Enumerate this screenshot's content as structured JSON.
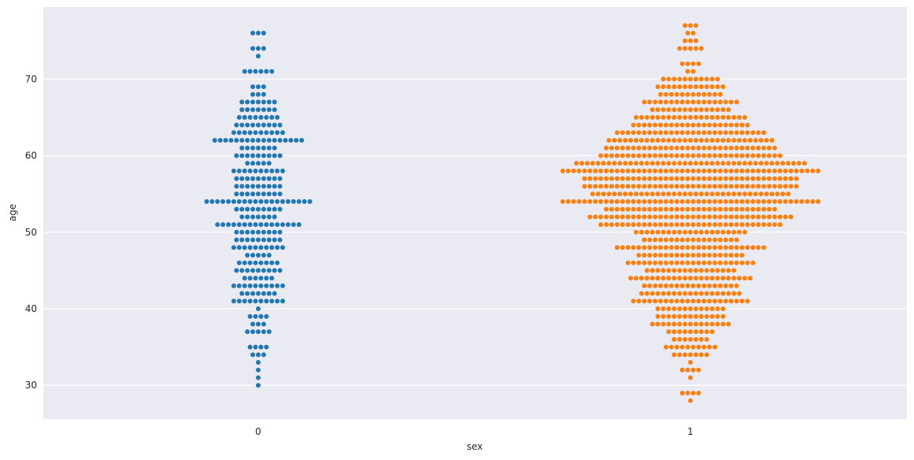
{
  "chart_data": {
    "type": "scatter",
    "subtype": "swarm",
    "title": "",
    "xlabel": "sex",
    "ylabel": "age",
    "categories": [
      "0",
      "1"
    ],
    "ylim": [
      25.6,
      79.4
    ],
    "yticks": [
      30,
      40,
      50,
      60,
      70
    ],
    "grid": true,
    "legend": "none",
    "colors": {
      "background": "#eaeaf2",
      "grid": "#ffffff",
      "series_0": "#1f77b4",
      "series_1": "#ff7f0e"
    },
    "series": [
      {
        "category": "0",
        "color": "#1f77b4",
        "age_counts": [
          [
            30,
            1
          ],
          [
            31,
            1
          ],
          [
            32,
            1
          ],
          [
            33,
            1
          ],
          [
            34,
            3
          ],
          [
            35,
            4
          ],
          [
            37,
            5
          ],
          [
            38,
            3
          ],
          [
            39,
            4
          ],
          [
            40,
            1
          ],
          [
            41,
            10
          ],
          [
            42,
            7
          ],
          [
            43,
            10
          ],
          [
            44,
            6
          ],
          [
            45,
            9
          ],
          [
            46,
            8
          ],
          [
            47,
            5
          ],
          [
            48,
            10
          ],
          [
            49,
            9
          ],
          [
            50,
            9
          ],
          [
            51,
            16
          ],
          [
            52,
            7
          ],
          [
            53,
            9
          ],
          [
            54,
            20
          ],
          [
            55,
            9
          ],
          [
            56,
            9
          ],
          [
            57,
            9
          ],
          [
            58,
            10
          ],
          [
            59,
            5
          ],
          [
            60,
            9
          ],
          [
            61,
            7
          ],
          [
            62,
            17
          ],
          [
            63,
            10
          ],
          [
            64,
            9
          ],
          [
            65,
            8
          ],
          [
            66,
            7
          ],
          [
            67,
            7
          ],
          [
            68,
            3
          ],
          [
            69,
            3
          ],
          [
            71,
            6
          ],
          [
            73,
            1
          ],
          [
            74,
            3
          ],
          [
            76,
            3
          ]
        ]
      },
      {
        "category": "1",
        "color": "#ff7f0e",
        "age_counts": [
          [
            28,
            1
          ],
          [
            29,
            4
          ],
          [
            31,
            1
          ],
          [
            32,
            4
          ],
          [
            33,
            1
          ],
          [
            34,
            7
          ],
          [
            35,
            10
          ],
          [
            36,
            7
          ],
          [
            37,
            9
          ],
          [
            38,
            15
          ],
          [
            39,
            13
          ],
          [
            40,
            13
          ],
          [
            41,
            22
          ],
          [
            42,
            19
          ],
          [
            43,
            18
          ],
          [
            44,
            23
          ],
          [
            45,
            17
          ],
          [
            46,
            24
          ],
          [
            47,
            20
          ],
          [
            48,
            28
          ],
          [
            49,
            18
          ],
          [
            50,
            21
          ],
          [
            51,
            34
          ],
          [
            52,
            38
          ],
          [
            53,
            32
          ],
          [
            54,
            48
          ],
          [
            55,
            37
          ],
          [
            56,
            40
          ],
          [
            57,
            40
          ],
          [
            58,
            48
          ],
          [
            59,
            43
          ],
          [
            60,
            34
          ],
          [
            61,
            32
          ],
          [
            62,
            31
          ],
          [
            63,
            28
          ],
          [
            64,
            22
          ],
          [
            65,
            21
          ],
          [
            66,
            15
          ],
          [
            67,
            18
          ],
          [
            68,
            12
          ],
          [
            69,
            13
          ],
          [
            70,
            11
          ],
          [
            71,
            2
          ],
          [
            72,
            4
          ],
          [
            74,
            5
          ],
          [
            75,
            3
          ],
          [
            76,
            2
          ],
          [
            77,
            3
          ]
        ]
      }
    ]
  }
}
